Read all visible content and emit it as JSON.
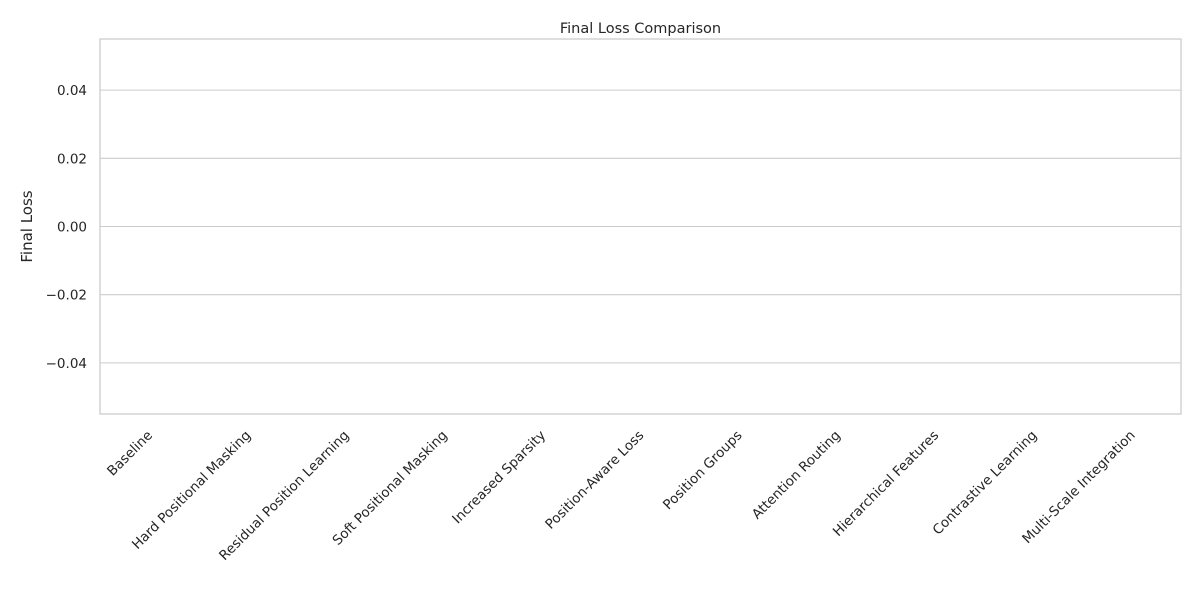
{
  "chart_data": {
    "type": "bar",
    "title": "Final Loss Comparison",
    "xlabel": "",
    "ylabel": "Final Loss",
    "categories": [
      "Baseline",
      "Hard Positional Masking",
      "Residual Position Learning",
      "Soft Positional Masking",
      "Increased Sparsity",
      "Position-Aware Loss",
      "Position Groups",
      "Attention Routing",
      "Hierarchical Features",
      "Contrastive Learning",
      "Multi-Scale Integration"
    ],
    "values": [
      null,
      null,
      null,
      null,
      null,
      null,
      null,
      null,
      null,
      null,
      null
    ],
    "ylim": [
      -0.055,
      0.055
    ],
    "yticks": [
      -0.04,
      -0.02,
      0.0,
      0.02,
      0.04
    ],
    "ytick_labels": [
      "−0.04",
      "−0.02",
      "0.00",
      "0.02",
      "0.04"
    ],
    "grid": "horizontal",
    "legend": "none"
  }
}
